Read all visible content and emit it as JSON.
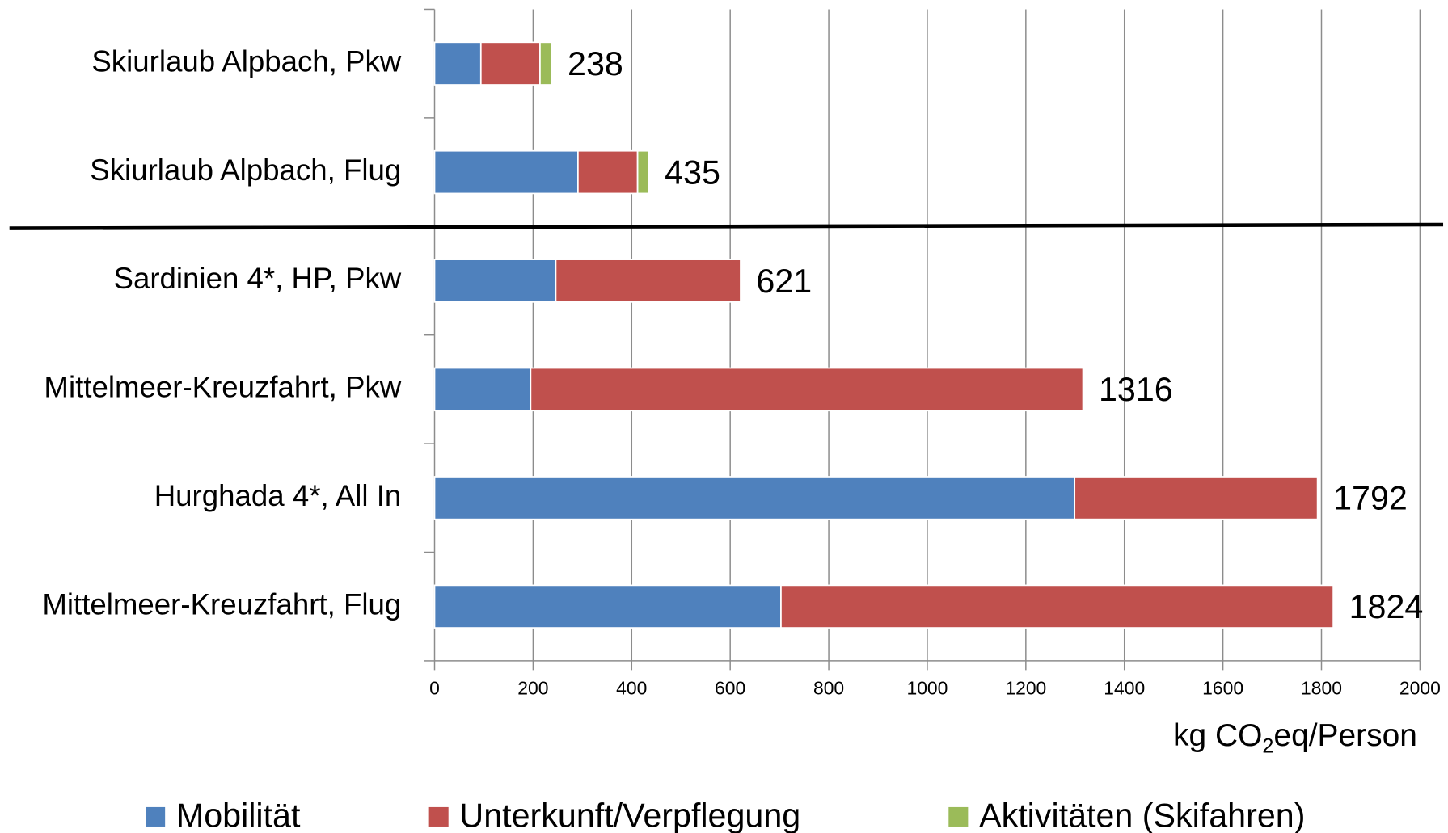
{
  "chart_data": {
    "type": "stacked-barh",
    "categories": [
      "Skiurlaub Alpbach, Pkw",
      "Skiurlaub Alpbach, Flug",
      "Sardinien 4*, HP, Pkw",
      "Mittelmeer-Kreuzfahrt, Pkw",
      "Hurghada 4*, All In",
      "Mittelmeer-Kreuzfahrt, Flug"
    ],
    "series": [
      {
        "name": "Mobilität",
        "color": "#4f81bd",
        "values": [
          94,
          291,
          246,
          195,
          1299,
          703
        ]
      },
      {
        "name": "Unterkunft/Verpflegung",
        "color": "#c0504d",
        "values": [
          120,
          121,
          375,
          1121,
          493,
          1121
        ]
      },
      {
        "name": "Aktivitäten (Skifahren)",
        "color": "#9bbb59",
        "values": [
          24,
          23,
          0,
          0,
          0,
          0
        ]
      }
    ],
    "totals": [
      238,
      435,
      621,
      1316,
      1792,
      1824
    ],
    "xlim": [
      0,
      2000
    ],
    "xticks": [
      0,
      200,
      400,
      600,
      800,
      1000,
      1200,
      1400,
      1600,
      1800,
      2000
    ],
    "x_label": [
      "kg CO",
      "2",
      "eq/Person"
    ],
    "grid": true,
    "legend": "bottom"
  }
}
